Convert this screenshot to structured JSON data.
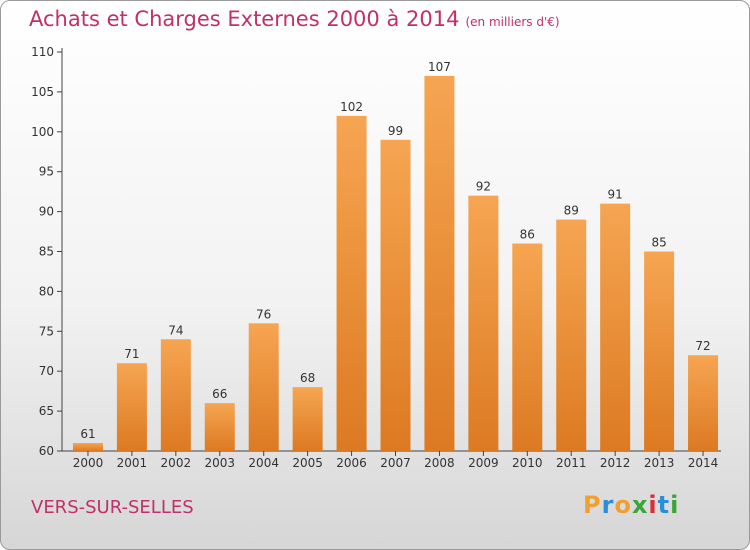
{
  "title": "Achats et Charges Externes 2000 à 2014",
  "subtitle": "(en milliers d'€)",
  "city": "VERS-SUR-SELLES",
  "logo": {
    "letters": [
      "P",
      "r",
      "o",
      "x",
      "i",
      "t",
      "i"
    ],
    "colors": [
      "#f0a030",
      "#2a8fd8",
      "#f0a030",
      "#3aa63a",
      "#d8303a",
      "#2a8fd8",
      "#3aa63a"
    ]
  },
  "chart_data": {
    "type": "bar",
    "categories": [
      "2000",
      "2001",
      "2002",
      "2003",
      "2004",
      "2005",
      "2006",
      "2007",
      "2008",
      "2009",
      "2010",
      "2011",
      "2012",
      "2013",
      "2014"
    ],
    "values": [
      61,
      71,
      74,
      66,
      76,
      68,
      102,
      99,
      107,
      92,
      86,
      89,
      91,
      85,
      72
    ],
    "ylim": [
      60,
      110
    ],
    "yticks": [
      60,
      65,
      70,
      75,
      80,
      85,
      90,
      95,
      100,
      105,
      110
    ],
    "grid": false,
    "bar_color": "#f0a050"
  }
}
